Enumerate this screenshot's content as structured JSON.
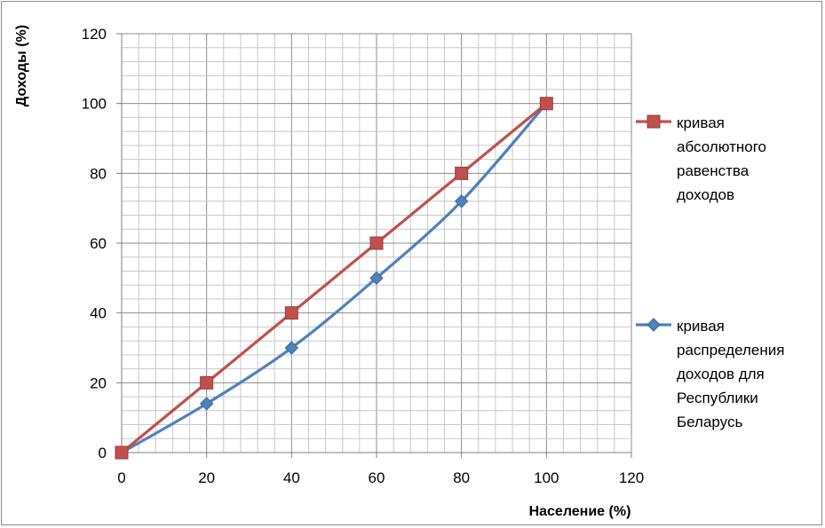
{
  "chart_data": {
    "type": "line",
    "xlabel": "Население (%)",
    "ylabel": "Доходы (%)",
    "xlim": [
      0,
      120
    ],
    "ylim": [
      0,
      120
    ],
    "x_ticks": [
      0,
      20,
      40,
      60,
      80,
      100,
      120
    ],
    "y_ticks": [
      0,
      20,
      40,
      60,
      80,
      100,
      120
    ],
    "grid": true,
    "legend_position": "right",
    "series": [
      {
        "name": "кривая абсолютного равенства доходов",
        "name_lines": [
          "кривая",
          "абсолютного",
          "равенства",
          "доходов"
        ],
        "marker": "square",
        "color": "#c0504d",
        "x": [
          0,
          20,
          40,
          60,
          80,
          100
        ],
        "y": [
          0,
          20,
          40,
          60,
          80,
          100
        ]
      },
      {
        "name": "кривая распределения доходов для Республики Беларусь",
        "name_lines": [
          "кривая",
          "распределения",
          "доходов для",
          "Республики",
          "Беларусь"
        ],
        "marker": "diamond",
        "color": "#4f81bd",
        "x": [
          0,
          20,
          40,
          60,
          80,
          100
        ],
        "y": [
          0,
          14,
          30,
          50,
          72,
          100
        ]
      }
    ]
  }
}
